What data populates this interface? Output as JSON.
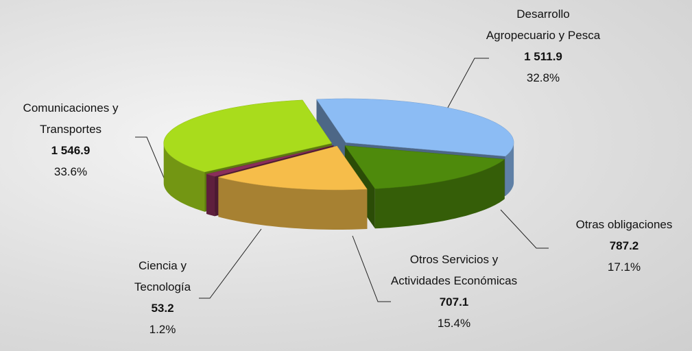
{
  "chart_data": {
    "type": "pie",
    "categories": [
      "Desarrollo Agropecuario y Pesca",
      "Otras obligaciones",
      "Otros Servicios y Actividades Económicas",
      "Ciencia y Tecnología",
      "Comunicaciones y Transportes"
    ],
    "values": [
      1511.9,
      787.2,
      707.1,
      53.2,
      1546.9
    ],
    "value_labels": [
      "1 511.9",
      "787.2",
      "707.1",
      "53.2",
      "1 546.9"
    ],
    "percents": [
      32.8,
      17.1,
      15.4,
      1.2,
      33.6
    ],
    "percent_labels": [
      "32.8%",
      "17.1%",
      "15.4%",
      "1.2%",
      "33.6%"
    ],
    "colors": [
      "#8cbcf4",
      "#4e8a0c",
      "#f6bd4a",
      "#8a2e5a",
      "#a9dc1c"
    ]
  }
}
